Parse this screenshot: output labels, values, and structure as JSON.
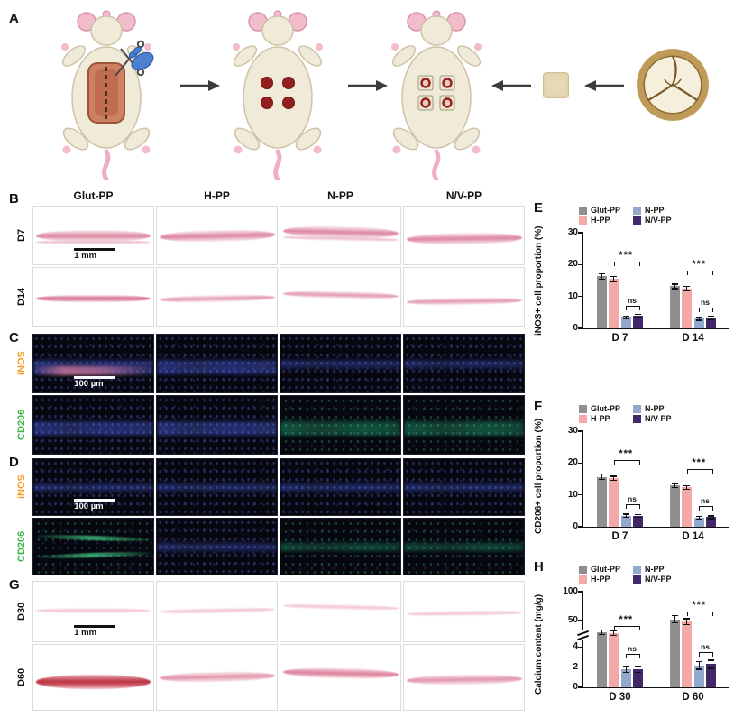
{
  "panels": {
    "a": {
      "label": "A"
    },
    "b": {
      "label": "B",
      "columns": [
        "Glut-PP",
        "H-PP",
        "N-PP",
        "N/V-PP"
      ],
      "rows": [
        "D7",
        "D14"
      ],
      "scale_bar": "1 mm"
    },
    "c": {
      "label": "C",
      "rows": [
        "iNOS",
        "CD206"
      ],
      "row_colors": [
        "#f59a23",
        "#3cb54a"
      ],
      "scale_bar": "100 µm"
    },
    "d": {
      "label": "D",
      "rows": [
        "iNOS",
        "CD206"
      ],
      "row_colors": [
        "#f59a23",
        "#3cb54a"
      ],
      "scale_bar": "100 µm"
    },
    "g": {
      "label": "G",
      "rows": [
        "D30",
        "D60"
      ],
      "scale_bar": "1 mm"
    },
    "e": {
      "label": "E"
    },
    "f": {
      "label": "F"
    },
    "h": {
      "label": "H"
    }
  },
  "series_colors": {
    "Glut-PP": "#8f8f8f",
    "H-PP": "#f4a9a9",
    "N-PP": "#93a8cd",
    "N/V-PP": "#40286b"
  },
  "chart_data": [
    {
      "panel": "E",
      "type": "bar",
      "categories": [
        "D 7",
        "D 14"
      ],
      "ylabel": "iNOS+ cell proportion  (%)",
      "xlabel": "",
      "ylim": [
        0,
        30
      ],
      "yticks": [
        0,
        10,
        20,
        30
      ],
      "legend_order": [
        0,
        2,
        1,
        3
      ],
      "series": [
        {
          "name": "Glut-PP",
          "color": "#8f8f8f",
          "values": [
            16.3,
            13.2
          ],
          "errors": [
            0.9,
            0.7
          ]
        },
        {
          "name": "H-PP",
          "color": "#f4a9a9",
          "values": [
            15.5,
            12.5
          ],
          "errors": [
            0.8,
            0.6
          ]
        },
        {
          "name": "N-PP",
          "color": "#93a8cd",
          "values": [
            3.4,
            3.0
          ],
          "errors": [
            0.5,
            0.4
          ]
        },
        {
          "name": "N/V-PP",
          "color": "#40286b",
          "values": [
            3.9,
            3.2
          ],
          "errors": [
            0.6,
            0.5
          ]
        }
      ],
      "annotations": [
        {
          "text": "***",
          "cat": 0,
          "from": 1,
          "to": 3,
          "level": 21.0
        },
        {
          "text": "ns",
          "cat": 0,
          "from": 2,
          "to": 3,
          "level": 7.2
        },
        {
          "text": "***",
          "cat": 1,
          "from": 1,
          "to": 3,
          "level": 18.0
        },
        {
          "text": "ns",
          "cat": 1,
          "from": 2,
          "to": 3,
          "level": 6.6
        }
      ]
    },
    {
      "panel": "F",
      "type": "bar",
      "categories": [
        "D 7",
        "D 14"
      ],
      "ylabel": "CD206+ cell  proportion (%)",
      "xlabel": "",
      "ylim": [
        0,
        30
      ],
      "yticks": [
        0,
        10,
        20,
        30
      ],
      "legend_order": [
        0,
        2,
        1,
        3
      ],
      "series": [
        {
          "name": "Glut-PP",
          "color": "#8f8f8f",
          "values": [
            15.7,
            13.0
          ],
          "errors": [
            0.8,
            0.6
          ]
        },
        {
          "name": "H-PP",
          "color": "#f4a9a9",
          "values": [
            15.2,
            12.4
          ],
          "errors": [
            0.7,
            0.6
          ]
        },
        {
          "name": "N-PP",
          "color": "#93a8cd",
          "values": [
            3.5,
            2.9
          ],
          "errors": [
            0.5,
            0.4
          ]
        },
        {
          "name": "N/V-PP",
          "color": "#40286b",
          "values": [
            3.4,
            3.0
          ],
          "errors": [
            0.5,
            0.4
          ]
        }
      ],
      "annotations": [
        {
          "text": "***",
          "cat": 0,
          "from": 1,
          "to": 3,
          "level": 21.0
        },
        {
          "text": "ns",
          "cat": 0,
          "from": 2,
          "to": 3,
          "level": 7.0
        },
        {
          "text": "***",
          "cat": 1,
          "from": 1,
          "to": 3,
          "level": 18.0
        },
        {
          "text": "ns",
          "cat": 1,
          "from": 2,
          "to": 3,
          "level": 6.4
        }
      ]
    },
    {
      "panel": "H",
      "type": "bar",
      "categories": [
        "D 30",
        "D 60"
      ],
      "ylabel": "Calcium content (mg/g)",
      "xlabel": "",
      "ylim": [
        0,
        100
      ],
      "yticks": [
        0,
        2,
        4,
        50,
        100
      ],
      "scale_stops": [
        [
          0,
          0
        ],
        [
          4,
          0.42
        ],
        [
          50,
          0.7
        ],
        [
          100,
          1
        ]
      ],
      "break_frac": 0.55,
      "legend_order": [
        0,
        2,
        1,
        3
      ],
      "series": [
        {
          "name": "Glut-PP",
          "color": "#8f8f8f",
          "values": [
            30,
            52
          ],
          "errors": [
            4,
            6
          ]
        },
        {
          "name": "H-PP",
          "color": "#f4a9a9",
          "values": [
            28,
            48
          ],
          "errors": [
            4,
            5
          ]
        },
        {
          "name": "N-PP",
          "color": "#93a8cd",
          "values": [
            1.8,
            2.2
          ],
          "errors": [
            0.3,
            0.4
          ]
        },
        {
          "name": "N/V-PP",
          "color": "#40286b",
          "values": [
            1.8,
            2.3
          ],
          "errors": [
            0.3,
            0.4
          ]
        }
      ],
      "annotations": [
        {
          "text": "***",
          "cat": 0,
          "from": 1,
          "to": 3,
          "level": 40
        },
        {
          "text": "ns",
          "cat": 0,
          "from": 2,
          "to": 3,
          "level": 3.3
        },
        {
          "text": "***",
          "cat": 1,
          "from": 1,
          "to": 3,
          "level": 66
        },
        {
          "text": "ns",
          "cat": 1,
          "from": 2,
          "to": 3,
          "level": 3.5
        }
      ]
    }
  ]
}
